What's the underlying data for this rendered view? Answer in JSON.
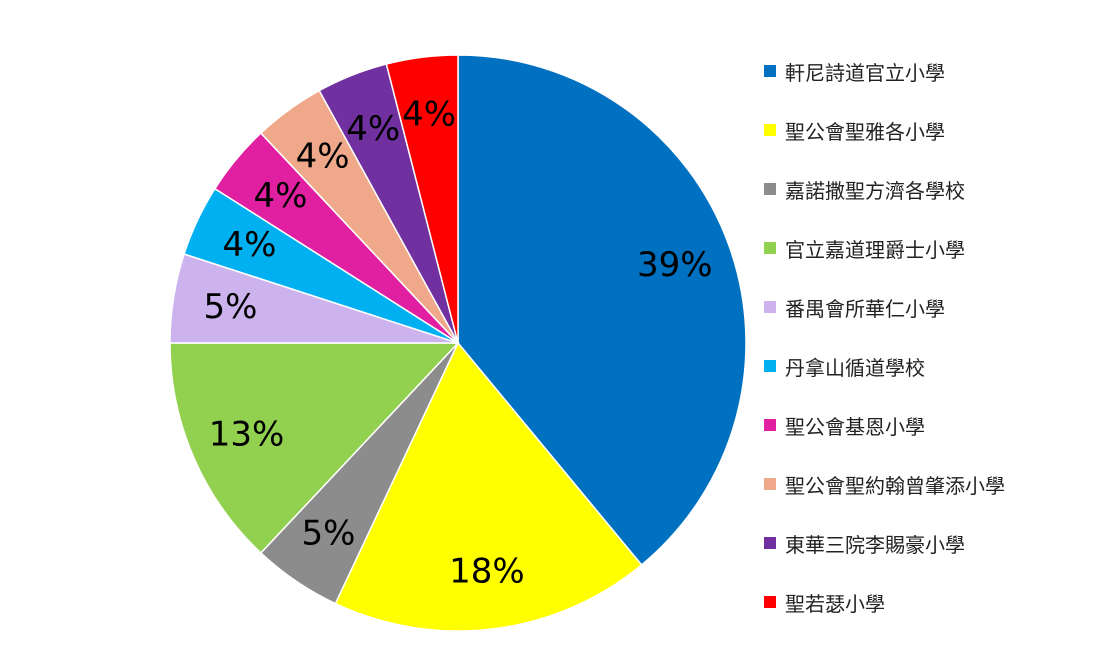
{
  "chart_data": {
    "type": "pie",
    "start_angle_deg": 0,
    "direction": "clockwise",
    "legend_position": "right",
    "slices": [
      {
        "name": "軒尼詩道官立小學",
        "value": 39,
        "label": "39%",
        "color": "#0070C0"
      },
      {
        "name": "聖公會聖雅各小學",
        "value": 18,
        "label": "18%",
        "color": "#FFFF00"
      },
      {
        "name": "嘉諾撒聖方濟各學校",
        "value": 5,
        "label": "5%",
        "color": "#8C8C8C"
      },
      {
        "name": "官立嘉道理爵士小學",
        "value": 13,
        "label": "13%",
        "color": "#92D050"
      },
      {
        "name": "番禺會所華仁小學",
        "value": 5,
        "label": "5%",
        "color": "#CCB3EE"
      },
      {
        "name": "丹拿山循道學校",
        "value": 4,
        "label": "4%",
        "color": "#00B0F0"
      },
      {
        "name": "聖公會基恩小學",
        "value": 4,
        "label": "4%",
        "color": "#E020A0"
      },
      {
        "name": "聖公會聖約翰曾肇添小學",
        "value": 4,
        "label": "4%",
        "color": "#F0A88A"
      },
      {
        "name": "東華三院李賜豪小學",
        "value": 4,
        "label": "4%",
        "color": "#7030A0"
      },
      {
        "name": "聖若瑟小學",
        "value": 4,
        "label": "4%",
        "color": "#FF0000"
      }
    ]
  }
}
